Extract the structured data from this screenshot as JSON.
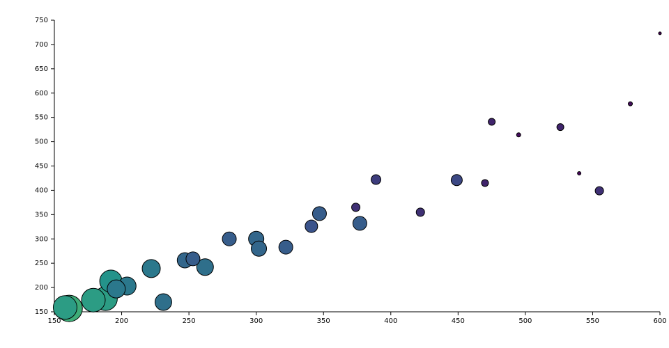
{
  "chart_data": {
    "type": "scatter",
    "x": [
      600,
      578,
      540,
      495,
      475,
      526,
      555,
      470,
      449,
      422,
      389,
      374,
      347,
      341,
      377,
      322,
      300,
      302,
      280,
      253,
      247,
      262,
      222,
      231,
      204,
      196,
      192,
      188,
      179,
      158,
      161
    ],
    "y": [
      723,
      578,
      435,
      514,
      541,
      530,
      399,
      415,
      421,
      355,
      422,
      365,
      352,
      326,
      332,
      283,
      300,
      280,
      300,
      259,
      256,
      242,
      239,
      170,
      203,
      197,
      213,
      177,
      174,
      159,
      157
    ],
    "sizes": [
      2,
      3,
      2.5,
      3,
      5,
      5,
      6,
      5,
      8,
      6,
      7,
      6,
      10,
      9,
      10,
      10,
      11,
      11,
      10,
      10,
      11,
      12,
      13,
      12,
      13,
      13,
      16,
      17,
      17,
      17,
      19
    ],
    "colormap": "viridis",
    "xlim": [
      150,
      600
    ],
    "xticks": [
      150,
      200,
      250,
      300,
      350,
      400,
      450,
      500,
      550,
      600
    ],
    "ylim": [
      150,
      750
    ],
    "yticks": [
      150,
      200,
      250,
      300,
      350,
      400,
      450,
      500,
      550,
      600,
      650,
      700,
      750
    ]
  }
}
